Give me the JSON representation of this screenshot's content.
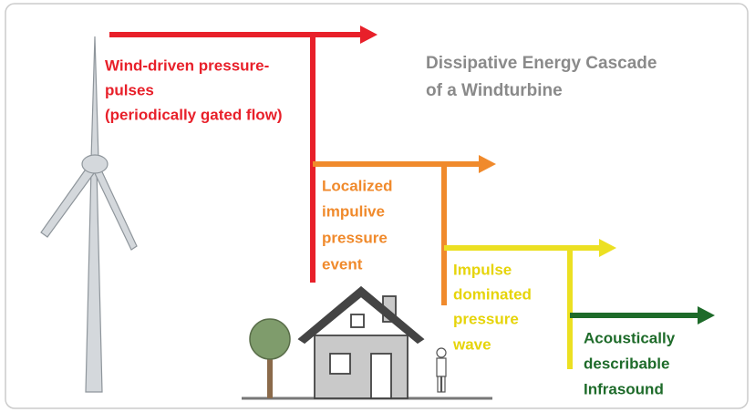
{
  "title": [
    "Dissipative Energy Cascade",
    "of a Windturbine"
  ],
  "stages": [
    {
      "lines": [
        "Wind-driven pressure-",
        "pulses",
        "(periodically gated flow)"
      ]
    },
    {
      "lines": [
        "Localized",
        "impulive",
        "pressure",
        "event"
      ]
    },
    {
      "lines": [
        "Impulse",
        "dominated",
        "pressure",
        "wave"
      ]
    },
    {
      "lines": [
        "Acoustically",
        "describable",
        "Infrasound"
      ]
    }
  ]
}
